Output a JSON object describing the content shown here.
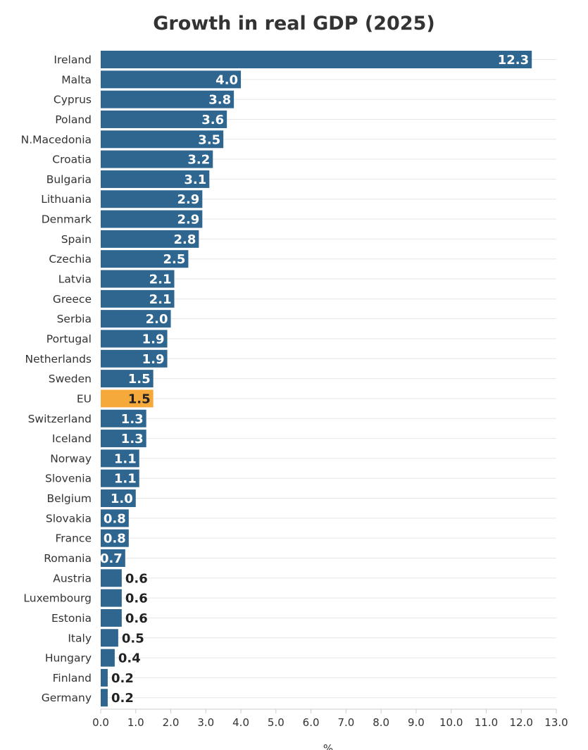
{
  "chart_data": {
    "type": "bar",
    "orientation": "horizontal",
    "title": "Growth in real GDP (2025)",
    "xlabel": "%",
    "ylabel": "",
    "xlim": [
      0,
      13
    ],
    "x_ticks": [
      "0.0",
      "1.0",
      "2.0",
      "3.0",
      "4.0",
      "5.0",
      "6.0",
      "7.0",
      "8.0",
      "9.0",
      "10.0",
      "11.0",
      "12.0",
      "13.0"
    ],
    "grid": "horizontal lines per category",
    "categories": [
      "Ireland",
      "Malta",
      "Cyprus",
      "Poland",
      "N.Macedonia",
      "Croatia",
      "Bulgaria",
      "Lithuania",
      "Denmark",
      "Spain",
      "Czechia",
      "Latvia",
      "Greece",
      "Serbia",
      "Portugal",
      "Netherlands",
      "Sweden",
      "EU",
      "Switzerland",
      "Iceland",
      "Norway",
      "Slovenia",
      "Belgium",
      "Slovakia",
      "France",
      "Romania",
      "Austria",
      "Luxembourg",
      "Estonia",
      "Italy",
      "Hungary",
      "Finland",
      "Germany"
    ],
    "values": [
      12.3,
      4.0,
      3.8,
      3.6,
      3.5,
      3.2,
      3.1,
      2.9,
      2.9,
      2.8,
      2.5,
      2.1,
      2.1,
      2.0,
      1.9,
      1.9,
      1.5,
      1.5,
      1.3,
      1.3,
      1.1,
      1.1,
      1.0,
      0.8,
      0.8,
      0.7,
      0.6,
      0.6,
      0.6,
      0.5,
      0.4,
      0.2,
      0.2
    ],
    "data_labels": [
      "12.3",
      "4.0",
      "3.8",
      "3.6",
      "3.5",
      "3.2",
      "3.1",
      "2.9",
      "2.9",
      "2.8",
      "2.5",
      "2.1",
      "2.1",
      "2.0",
      "1.9",
      "1.9",
      "1.5",
      "1.5",
      "1.3",
      "1.3",
      "1.1",
      "1.1",
      "1.0",
      "0.8",
      "0.8",
      "0.7",
      "0.6",
      "0.6",
      "0.6",
      "0.5",
      "0.4",
      "0.2",
      "0.2"
    ],
    "highlight_category": "EU",
    "colors": {
      "bar": "#2e6690",
      "highlight": "#f5a93b",
      "grid": "#e6e6e6",
      "axis": "#cccccc"
    }
  }
}
